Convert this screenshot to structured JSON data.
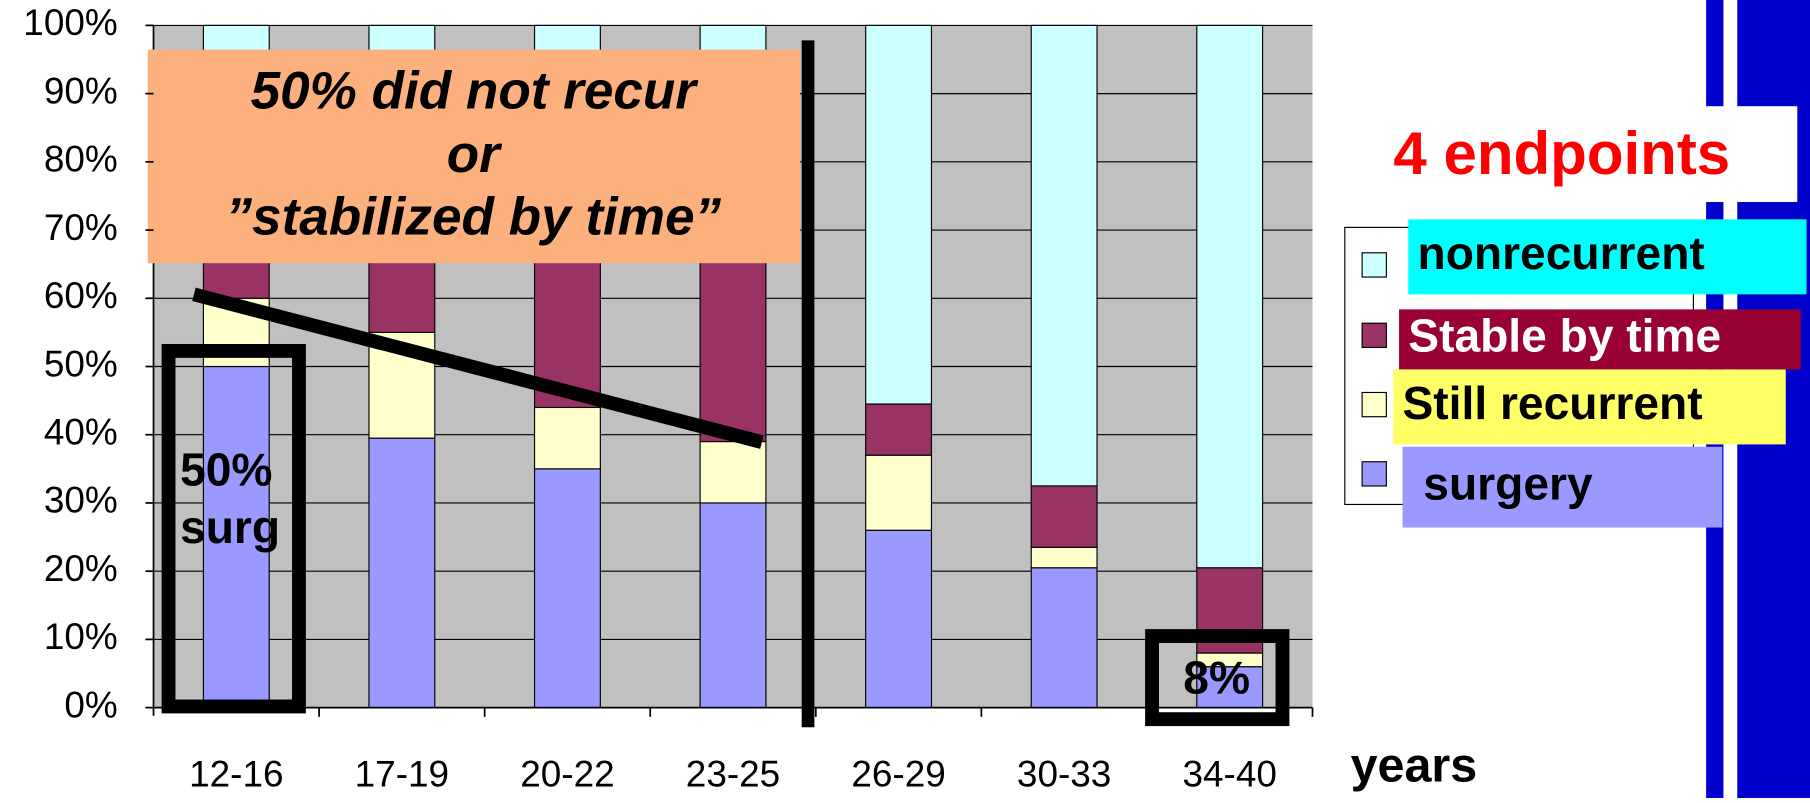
{
  "chart_data": {
    "type": "bar",
    "stacked": true,
    "title": "4 endpoints",
    "x_label": "years",
    "categories": [
      "12-16",
      "17-19",
      "20-22",
      "23-25",
      "26-29",
      "30-33",
      "34-40"
    ],
    "series": [
      {
        "name": "surgery",
        "color": "#9999ff",
        "values": [
          50,
          39.5,
          35,
          30,
          26,
          20.5,
          6
        ]
      },
      {
        "name": "Still recurrent",
        "color": "#ffffcc",
        "values": [
          10,
          15.5,
          9,
          9,
          11,
          3,
          2
        ]
      },
      {
        "name": "Stable by time",
        "color": "#993366",
        "values": [
          10,
          15,
          26,
          31,
          7.5,
          9,
          12.5
        ]
      },
      {
        "name": "nonrecurrent",
        "color": "#ccffff",
        "values": [
          30,
          30,
          30,
          30,
          55.5,
          67.5,
          79.5
        ]
      }
    ],
    "ylim": [
      0,
      100
    ],
    "yticks": [
      {
        "value": 0,
        "label": "0%"
      },
      {
        "value": 10,
        "label": "10%"
      },
      {
        "value": 20,
        "label": "20%"
      },
      {
        "value": 30,
        "label": "30%"
      },
      {
        "value": 40,
        "label": "40%"
      },
      {
        "value": 50,
        "label": "50%"
      },
      {
        "value": 60,
        "label": "60%"
      },
      {
        "value": 70,
        "label": "70%"
      },
      {
        "value": 80,
        "label": "80%"
      },
      {
        "value": 90,
        "label": "90%"
      },
      {
        "value": 100,
        "label": "100%"
      }
    ],
    "grid": true,
    "callout": [
      "50% did not recur",
      "or",
      "”stabilized by time”"
    ],
    "surgery_note": [
      "50%",
      "surg"
    ],
    "last_note": "8%"
  }
}
